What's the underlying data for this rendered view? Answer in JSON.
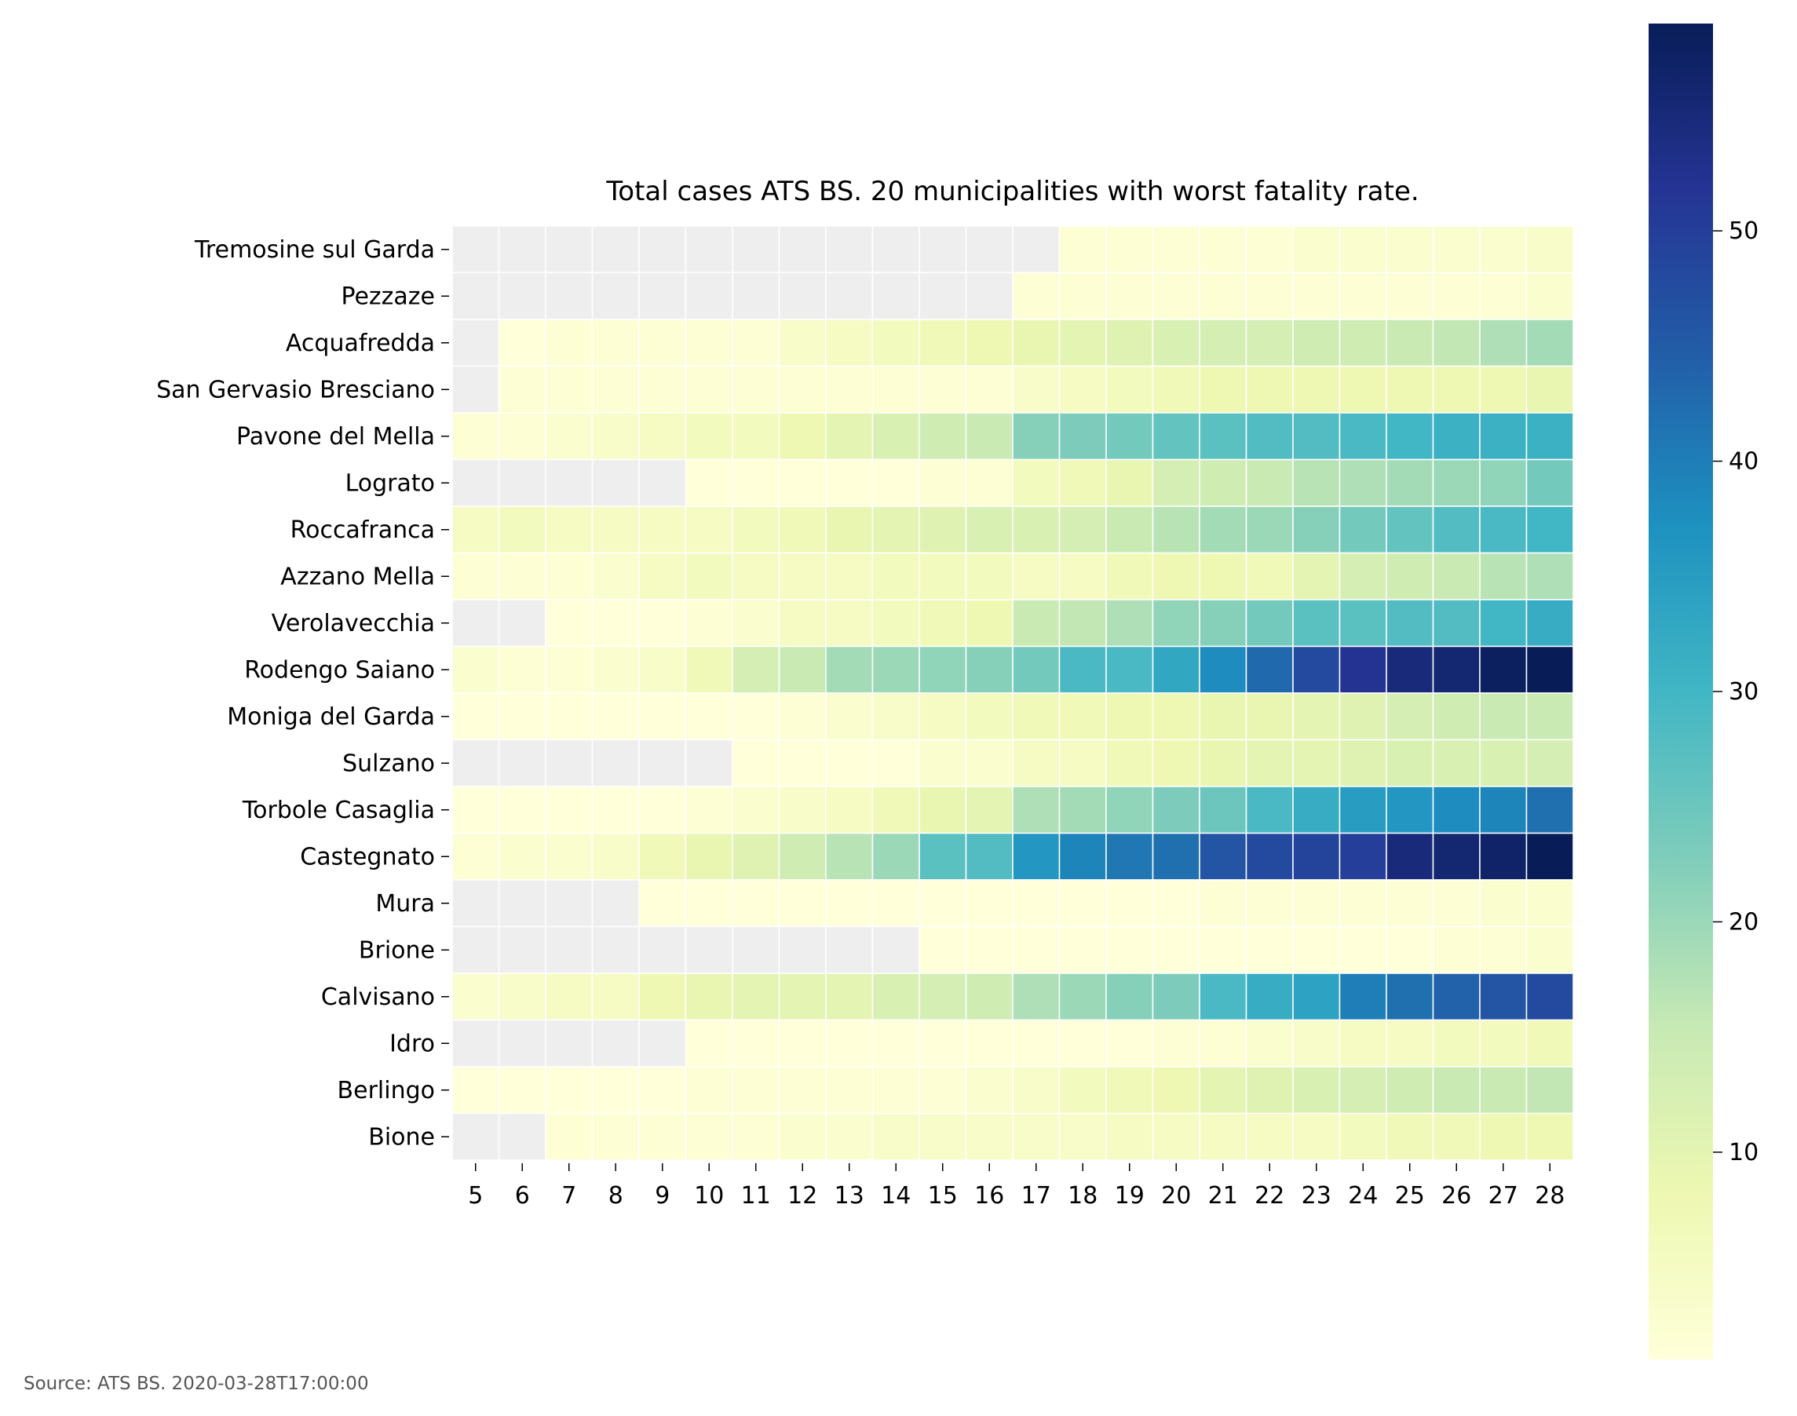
{
  "chart_data": {
    "type": "heatmap",
    "title": "Total cases ATS BS. 20 municipalities with worst fatality rate.",
    "source": "Source: ATS BS. 2020-03-28T17:00:00",
    "x": [
      5,
      6,
      7,
      8,
      9,
      10,
      11,
      12,
      13,
      14,
      15,
      16,
      17,
      18,
      19,
      20,
      21,
      22,
      23,
      24,
      25,
      26,
      27,
      28
    ],
    "x_labels": [
      "5",
      "6",
      "7",
      "8",
      "9",
      "10",
      "11",
      "12",
      "13",
      "14",
      "15",
      "16",
      "17",
      "18",
      "19",
      "20",
      "21",
      "22",
      "23",
      "24",
      "25",
      "26",
      "27",
      "28"
    ],
    "y": [
      "Tremosine sul Garda",
      "Pezzaze",
      "Acquafredda",
      "San Gervasio Bresciano",
      "Pavone del Mella",
      "Lograto",
      "Roccafranca",
      "Azzano Mella",
      "Verolavecchia",
      "Rodengo Saiano",
      "Moniga del Garda",
      "Sulzano",
      "Torbole Casaglia",
      "Castegnato",
      "Mura",
      "Brione",
      "Calvisano",
      "Idro",
      "Berlingo",
      "Bione"
    ],
    "values": [
      [
        null,
        null,
        null,
        null,
        null,
        null,
        null,
        null,
        null,
        null,
        null,
        null,
        null,
        2,
        2,
        2,
        2,
        2,
        3,
        3,
        3,
        3,
        3,
        4
      ],
      [
        null,
        null,
        null,
        null,
        null,
        null,
        null,
        null,
        null,
        null,
        null,
        null,
        2,
        2,
        2,
        2,
        2,
        2,
        2,
        2,
        2,
        2,
        2,
        3
      ],
      [
        null,
        1,
        2,
        2,
        2,
        2,
        2,
        4,
        5,
        6,
        7,
        8,
        9,
        10,
        11,
        12,
        13,
        13,
        14,
        14,
        15,
        16,
        18,
        19
      ],
      [
        null,
        2,
        2,
        2,
        2,
        2,
        2,
        2,
        2,
        2,
        2,
        2,
        4,
        5,
        6,
        7,
        8,
        8,
        8,
        8,
        8,
        8,
        8,
        9
      ],
      [
        2,
        2,
        3,
        4,
        5,
        6,
        6,
        8,
        10,
        12,
        14,
        15,
        22,
        23,
        24,
        26,
        27,
        28,
        28,
        29,
        30,
        31,
        31,
        31
      ],
      [
        null,
        null,
        null,
        null,
        null,
        1,
        1,
        1,
        1,
        1,
        2,
        2,
        6,
        7,
        9,
        13,
        14,
        15,
        17,
        18,
        19,
        20,
        21,
        24
      ],
      [
        5,
        6,
        5,
        5,
        5,
        5,
        6,
        7,
        9,
        10,
        11,
        12,
        12,
        13,
        15,
        17,
        19,
        20,
        22,
        24,
        26,
        28,
        29,
        30
      ],
      [
        2,
        2,
        2,
        3,
        5,
        6,
        5,
        5,
        5,
        6,
        6,
        6,
        5,
        5,
        7,
        8,
        8,
        7,
        10,
        13,
        14,
        15,
        17,
        18
      ],
      [
        null,
        null,
        1,
        1,
        1,
        2,
        3,
        5,
        5,
        6,
        7,
        8,
        15,
        16,
        18,
        21,
        22,
        24,
        27,
        27,
        28,
        28,
        30,
        32
      ],
      [
        3,
        2,
        2,
        3,
        4,
        7,
        13,
        15,
        19,
        20,
        21,
        22,
        24,
        29,
        29,
        33,
        38,
        43,
        48,
        52,
        55,
        56,
        58,
        59
      ],
      [
        1,
        1,
        1,
        1,
        1,
        1,
        1,
        2,
        3,
        4,
        5,
        6,
        7,
        7,
        8,
        8,
        9,
        9,
        10,
        11,
        13,
        14,
        15,
        15
      ],
      [
        null,
        null,
        null,
        null,
        null,
        null,
        1,
        1,
        1,
        1,
        3,
        3,
        5,
        5,
        7,
        8,
        9,
        10,
        10,
        11,
        12,
        12,
        12,
        13
      ],
      [
        1,
        1,
        1,
        1,
        1,
        2,
        3,
        4,
        5,
        7,
        9,
        10,
        18,
        19,
        21,
        23,
        25,
        29,
        32,
        35,
        36,
        38,
        39,
        42
      ],
      [
        2,
        3,
        3,
        4,
        7,
        9,
        11,
        14,
        17,
        20,
        27,
        28,
        36,
        39,
        41,
        42,
        46,
        48,
        49,
        50,
        55,
        56,
        57,
        59
      ],
      [
        null,
        null,
        null,
        null,
        1,
        1,
        1,
        1,
        1,
        1,
        1,
        1,
        1,
        1,
        1,
        1,
        2,
        2,
        2,
        2,
        2,
        2,
        3,
        3
      ],
      [
        null,
        null,
        null,
        null,
        null,
        null,
        null,
        null,
        null,
        null,
        1,
        1,
        1,
        1,
        1,
        1,
        1,
        1,
        1,
        1,
        1,
        2,
        2,
        3
      ],
      [
        3,
        4,
        5,
        5,
        8,
        9,
        10,
        10,
        10,
        12,
        13,
        14,
        18,
        20,
        22,
        23,
        29,
        32,
        34,
        40,
        42,
        44,
        46,
        48
      ],
      [
        null,
        null,
        null,
        null,
        null,
        1,
        1,
        1,
        1,
        1,
        1,
        1,
        1,
        1,
        1,
        2,
        2,
        3,
        4,
        5,
        5,
        6,
        6,
        7
      ],
      [
        1,
        1,
        1,
        1,
        1,
        2,
        2,
        2,
        2,
        2,
        2,
        3,
        4,
        6,
        7,
        8,
        10,
        11,
        12,
        13,
        14,
        15,
        15,
        16
      ],
      [
        null,
        null,
        2,
        2,
        2,
        2,
        2,
        3,
        3,
        4,
        4,
        4,
        4,
        4,
        5,
        5,
        5,
        5,
        5,
        6,
        7,
        7,
        8,
        8
      ]
    ],
    "missing_color": "#eeeeee",
    "colormap": "YlGnBu",
    "colorbar": {
      "min": 1,
      "max": 59,
      "ticks": [
        10,
        20,
        30,
        40,
        50
      ]
    }
  }
}
